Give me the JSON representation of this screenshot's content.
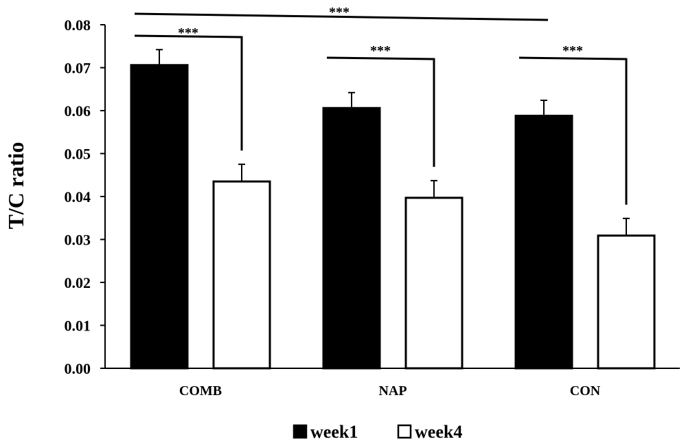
{
  "chart_data": {
    "type": "bar",
    "title": "",
    "xlabel": "",
    "ylabel": "T/C ratio",
    "ylim": [
      0,
      0.08
    ],
    "yticks": [
      "0.00",
      "0.01",
      "0.02",
      "0.03",
      "0.04",
      "0.05",
      "0.06",
      "0.07",
      "0.08"
    ],
    "categories": [
      "COMB",
      "NAP",
      "CON"
    ],
    "series": [
      {
        "name": "week1",
        "color": "#000000",
        "values": [
          0.0706,
          0.0606,
          0.0588
        ],
        "errors": [
          0.0036,
          0.0036,
          0.0036
        ]
      },
      {
        "name": "week4",
        "color": "#ffffff",
        "values": [
          0.0435,
          0.0397,
          0.0309
        ],
        "errors": [
          0.004,
          0.004,
          0.004
        ]
      }
    ],
    "legend": {
      "placement": "bottom-center"
    },
    "grid": false,
    "significance": [
      {
        "label": "***",
        "from": "COMB/week1",
        "to": "CON/week1"
      },
      {
        "label": "***",
        "from": "COMB/week1",
        "to": "COMB/week4"
      },
      {
        "label": "***",
        "from": "NAP/week1",
        "to": "NAP/week4"
      },
      {
        "label": "***",
        "from": "CON/week1",
        "to": "CON/week4"
      }
    ]
  }
}
